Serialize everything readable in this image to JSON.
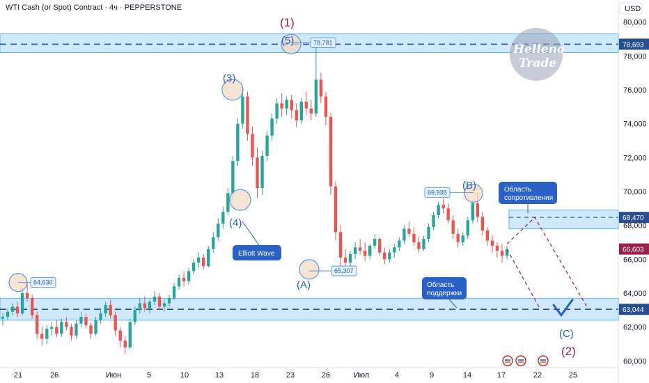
{
  "header": {
    "title": "WTI Cash (or Spot) Contract · 4ч · PEPPERSTONE",
    "currency": "USD"
  },
  "watermark": {
    "line1": "Hellena",
    "line2": "Trade"
  },
  "colors": {
    "up": "#26a69a",
    "down": "#ef5350",
    "zone": "#bbdefb",
    "line": "#2a4d8f",
    "red_line": "#9c2148",
    "blue": "#2962c4"
  },
  "chart_data": {
    "type": "candlestick",
    "y_range": [
      59.6,
      81.3
    ],
    "y_ticks": [
      {
        "v": 80,
        "label": "80,000"
      },
      {
        "v": 78,
        "label": "78,000"
      },
      {
        "v": 76,
        "label": "76,000"
      },
      {
        "v": 74,
        "label": "74,000"
      },
      {
        "v": 72,
        "label": "72,000"
      },
      {
        "v": 70,
        "label": "70,000"
      },
      {
        "v": 68,
        "label": "68,000"
      },
      {
        "v": 66,
        "label": "66,000"
      },
      {
        "v": 64,
        "label": "64,000"
      },
      {
        "v": 62,
        "label": "62,000"
      },
      {
        "v": 60,
        "label": "60,000"
      }
    ],
    "x_ticks": [
      "21",
      "26",
      "Июн",
      "5",
      "10",
      "13",
      "18",
      "23",
      "26",
      "Июл",
      "4",
      "9",
      "14",
      "17",
      "22",
      "25"
    ],
    "price_badges": [
      {
        "label": "78,693",
        "v": 78.693,
        "color": "#2a4d8f"
      },
      {
        "label": "68,470",
        "v": 68.47,
        "color": "#2a4d8f"
      },
      {
        "label": "66,603",
        "v": 66.603,
        "color": "#9c2148"
      },
      {
        "label": "63,044",
        "v": 63.044,
        "color": "#2a4d8f"
      }
    ],
    "levels": [
      {
        "label": "78,693",
        "v": 78.693,
        "zone": [
          78.2,
          79.3
        ]
      },
      {
        "label": "63,044",
        "v": 63.044,
        "zone": [
          62.4,
          63.7
        ]
      }
    ],
    "resistance_box": [
      67.8,
      68.9
    ],
    "price_labels": [
      "64,630",
      "78,781",
      "65,307",
      "69,938"
    ],
    "wave_labels": {
      "w1": "(1)",
      "w2": "(2)",
      "w3": "(3)",
      "w4": "(4)",
      "w5": "(5)",
      "wA": "(A)",
      "wB": "(B)",
      "wC": "(C)"
    },
    "callouts": {
      "elliott": "Elliott Wave",
      "resistance": [
        "Область",
        "сопротивления"
      ],
      "support": [
        "Область",
        "поддержки"
      ]
    },
    "candles": [
      [
        62.5,
        62.8,
        62.1,
        62.6
      ],
      [
        62.6,
        63.1,
        62.4,
        62.9
      ],
      [
        62.9,
        63.4,
        62.7,
        63.2
      ],
      [
        63.2,
        63.5,
        62.6,
        62.8
      ],
      [
        62.8,
        64.3,
        62.7,
        64.0
      ],
      [
        64.0,
        64.63,
        63.5,
        63.7
      ],
      [
        63.7,
        63.9,
        62.5,
        62.7
      ],
      [
        62.7,
        62.9,
        61.3,
        61.6
      ],
      [
        61.6,
        62.0,
        60.9,
        61.3
      ],
      [
        61.3,
        62.1,
        61.0,
        61.9
      ],
      [
        61.9,
        62.3,
        61.5,
        62.0
      ],
      [
        62.0,
        62.4,
        61.4,
        61.6
      ],
      [
        61.6,
        62.5,
        61.4,
        62.3
      ],
      [
        62.3,
        62.6,
        61.8,
        62.0
      ],
      [
        62.0,
        62.2,
        61.2,
        61.5
      ],
      [
        61.5,
        62.4,
        61.3,
        62.2
      ],
      [
        62.2,
        62.9,
        62.0,
        62.6
      ],
      [
        62.6,
        62.8,
        61.9,
        62.1
      ],
      [
        62.1,
        62.3,
        61.3,
        61.6
      ],
      [
        61.6,
        62.6,
        61.5,
        62.4
      ],
      [
        62.4,
        63.1,
        62.2,
        62.8
      ],
      [
        62.8,
        63.5,
        62.6,
        63.3
      ],
      [
        63.3,
        63.6,
        62.5,
        62.7
      ],
      [
        62.7,
        62.9,
        61.5,
        61.8
      ],
      [
        61.8,
        62.0,
        60.8,
        61.2
      ],
      [
        61.2,
        61.5,
        60.4,
        60.8
      ],
      [
        60.8,
        62.5,
        60.7,
        62.3
      ],
      [
        62.3,
        63.2,
        62.1,
        63.0
      ],
      [
        63.0,
        63.7,
        62.8,
        63.4
      ],
      [
        63.4,
        63.8,
        62.9,
        63.1
      ],
      [
        63.1,
        63.6,
        62.8,
        63.5
      ],
      [
        63.5,
        64.1,
        63.3,
        63.8
      ],
      [
        63.8,
        64.0,
        63.0,
        63.2
      ],
      [
        63.2,
        63.6,
        62.9,
        63.4
      ],
      [
        63.4,
        63.9,
        63.2,
        63.7
      ],
      [
        63.7,
        64.6,
        63.6,
        64.4
      ],
      [
        64.4,
        65.1,
        64.2,
        64.9
      ],
      [
        64.9,
        65.3,
        64.4,
        64.7
      ],
      [
        64.7,
        65.5,
        64.5,
        65.3
      ],
      [
        65.3,
        66.0,
        65.1,
        65.8
      ],
      [
        65.8,
        66.4,
        65.5,
        66.1
      ],
      [
        66.1,
        66.3,
        65.4,
        65.6
      ],
      [
        65.6,
        66.8,
        65.5,
        66.6
      ],
      [
        66.6,
        67.6,
        66.4,
        67.3
      ],
      [
        67.3,
        68.4,
        67.1,
        68.1
      ],
      [
        68.1,
        69.1,
        67.8,
        68.8
      ],
      [
        68.8,
        70.2,
        68.6,
        69.9
      ],
      [
        69.9,
        72.1,
        69.6,
        71.8
      ],
      [
        71.8,
        74.3,
        71.5,
        74.0
      ],
      [
        74.0,
        76.2,
        73.7,
        75.6
      ],
      [
        75.6,
        75.9,
        73.0,
        73.4
      ],
      [
        73.4,
        73.8,
        71.5,
        72.0
      ],
      [
        72.0,
        72.6,
        69.6,
        70.2
      ],
      [
        70.2,
        72.4,
        69.8,
        72.1
      ],
      [
        72.1,
        73.6,
        71.8,
        73.3
      ],
      [
        73.3,
        74.6,
        73.0,
        74.3
      ],
      [
        74.3,
        75.5,
        74.0,
        75.2
      ],
      [
        75.2,
        75.8,
        74.4,
        74.9
      ],
      [
        74.9,
        75.6,
        74.5,
        75.4
      ],
      [
        75.4,
        75.7,
        74.3,
        74.8
      ],
      [
        74.8,
        75.2,
        73.8,
        74.2
      ],
      [
        74.2,
        75.5,
        74.0,
        75.3
      ],
      [
        75.3,
        75.9,
        74.5,
        74.9
      ],
      [
        74.9,
        75.4,
        74.2,
        74.6
      ],
      [
        74.6,
        78.78,
        74.4,
        76.6
      ],
      [
        76.6,
        77.0,
        75.2,
        75.6
      ],
      [
        75.6,
        75.9,
        73.9,
        74.4
      ],
      [
        74.4,
        74.6,
        69.8,
        70.3
      ],
      [
        70.3,
        70.6,
        67.1,
        67.6
      ],
      [
        67.6,
        68.0,
        65.6,
        66.1
      ],
      [
        66.1,
        66.6,
        65.31,
        65.8
      ],
      [
        65.8,
        66.5,
        65.5,
        66.3
      ],
      [
        66.3,
        67.0,
        66.0,
        66.7
      ],
      [
        66.7,
        67.2,
        66.3,
        66.5
      ],
      [
        66.5,
        67.0,
        65.9,
        66.2
      ],
      [
        66.2,
        66.9,
        66.0,
        66.8
      ],
      [
        66.8,
        67.5,
        66.6,
        67.2
      ],
      [
        67.2,
        67.3,
        66.2,
        66.4
      ],
      [
        66.4,
        66.7,
        65.7,
        66.0
      ],
      [
        66.0,
        66.6,
        65.8,
        66.4
      ],
      [
        66.4,
        66.9,
        66.1,
        66.7
      ],
      [
        66.7,
        67.3,
        66.5,
        67.1
      ],
      [
        67.1,
        68.0,
        66.9,
        67.8
      ],
      [
        67.8,
        68.2,
        67.3,
        67.5
      ],
      [
        67.5,
        67.9,
        66.8,
        67.0
      ],
      [
        67.0,
        67.3,
        66.4,
        66.6
      ],
      [
        66.6,
        67.4,
        66.5,
        67.2
      ],
      [
        67.2,
        68.1,
        67.0,
        67.9
      ],
      [
        67.9,
        68.8,
        67.7,
        68.6
      ],
      [
        68.6,
        69.4,
        68.4,
        69.2
      ],
      [
        69.2,
        69.6,
        68.7,
        69.0
      ],
      [
        69.0,
        69.3,
        68.1,
        68.3
      ],
      [
        68.3,
        68.6,
        67.2,
        67.5
      ],
      [
        67.5,
        67.8,
        66.7,
        67.0
      ],
      [
        67.0,
        67.6,
        66.8,
        67.4
      ],
      [
        67.4,
        68.5,
        67.2,
        68.3
      ],
      [
        68.3,
        69.5,
        68.1,
        69.3
      ],
      [
        69.3,
        69.938,
        68.2,
        68.5
      ],
      [
        68.5,
        68.8,
        67.4,
        67.7
      ],
      [
        67.7,
        67.9,
        66.8,
        67.1
      ],
      [
        67.1,
        67.4,
        66.4,
        66.8
      ],
      [
        66.8,
        67.0,
        66.1,
        66.5
      ],
      [
        66.5,
        66.9,
        65.8,
        66.2
      ],
      [
        66.2,
        66.8,
        66.0,
        66.6
      ]
    ],
    "projection": [
      [
        67.8,
        66.603
      ],
      [
        68.47,
        68.47
      ],
      [
        63.044,
        63.044
      ]
    ]
  }
}
